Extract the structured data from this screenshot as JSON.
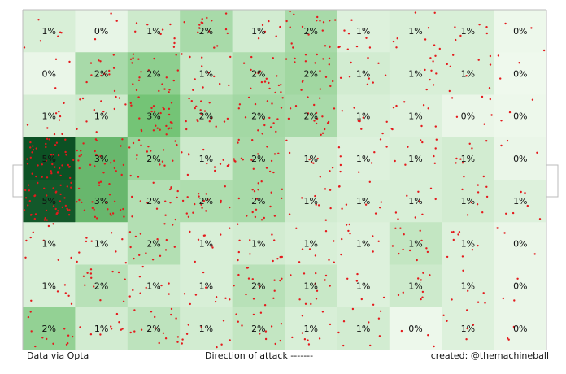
{
  "chart_data": {
    "type": "heatmap",
    "rows": 8,
    "cols": 10,
    "values": [
      [
        "1%",
        "0%",
        "1%",
        "2%",
        "1%",
        "2%",
        "1%",
        "1%",
        "1%",
        "0%"
      ],
      [
        "0%",
        "2%",
        "2%",
        "1%",
        "2%",
        "2%",
        "1%",
        "1%",
        "1%",
        "0%"
      ],
      [
        "1%",
        "1%",
        "3%",
        "2%",
        "2%",
        "2%",
        "1%",
        "1%",
        "0%",
        "0%"
      ],
      [
        "5%",
        "3%",
        "2%",
        "1%",
        "2%",
        "1%",
        "1%",
        "1%",
        "1%",
        "0%"
      ],
      [
        "5%",
        "3%",
        "2%",
        "2%",
        "2%",
        "1%",
        "1%",
        "1%",
        "1%",
        "1%"
      ],
      [
        "1%",
        "1%",
        "2%",
        "1%",
        "1%",
        "1%",
        "1%",
        "1%",
        "1%",
        "0%"
      ],
      [
        "1%",
        "2%",
        "1%",
        "1%",
        "2%",
        "1%",
        "1%",
        "1%",
        "1%",
        "0%"
      ],
      [
        "2%",
        "1%",
        "2%",
        "1%",
        "2%",
        "1%",
        "1%",
        "0%",
        "1%",
        "0%"
      ]
    ],
    "intensity": [
      [
        0.12,
        0.06,
        0.16,
        0.3,
        0.14,
        0.3,
        0.1,
        0.12,
        0.12,
        0.04
      ],
      [
        0.05,
        0.3,
        0.4,
        0.18,
        0.28,
        0.33,
        0.14,
        0.12,
        0.12,
        0.03
      ],
      [
        0.13,
        0.16,
        0.5,
        0.28,
        0.32,
        0.3,
        0.12,
        0.1,
        0.05,
        0.04
      ],
      [
        0.95,
        0.55,
        0.35,
        0.16,
        0.3,
        0.14,
        0.1,
        0.12,
        0.14,
        0.05
      ],
      [
        0.92,
        0.55,
        0.26,
        0.28,
        0.3,
        0.14,
        0.12,
        0.12,
        0.14,
        0.1
      ],
      [
        0.12,
        0.12,
        0.26,
        0.12,
        0.14,
        0.12,
        0.1,
        0.2,
        0.1,
        0.05
      ],
      [
        0.12,
        0.24,
        0.14,
        0.12,
        0.24,
        0.18,
        0.1,
        0.16,
        0.1,
        0.05
      ],
      [
        0.38,
        0.14,
        0.22,
        0.14,
        0.2,
        0.12,
        0.14,
        0.04,
        0.1,
        0.05
      ]
    ],
    "event_density": [
      [
        2,
        1,
        3,
        5,
        2,
        6,
        3,
        3,
        2,
        1
      ],
      [
        1,
        4,
        7,
        4,
        6,
        6,
        3,
        3,
        3,
        1
      ],
      [
        3,
        4,
        9,
        6,
        6,
        6,
        3,
        3,
        2,
        1
      ],
      [
        14,
        8,
        6,
        4,
        6,
        3,
        3,
        3,
        3,
        1
      ],
      [
        14,
        8,
        5,
        6,
        6,
        3,
        3,
        3,
        3,
        2
      ],
      [
        3,
        3,
        5,
        3,
        4,
        3,
        3,
        4,
        3,
        1
      ],
      [
        2,
        4,
        3,
        3,
        5,
        4,
        2,
        3,
        2,
        1
      ],
      [
        4,
        3,
        5,
        3,
        4,
        3,
        3,
        1,
        2,
        1
      ]
    ],
    "colors": {
      "scale_low": "#f7fcf5",
      "scale_mid": "#74c476",
      "scale_high": "#00441b",
      "events": "#e41a1c",
      "pitch_lines": "#bbbbbb"
    }
  },
  "footer": {
    "source": "Data via Opta",
    "direction": "Direction of attack -------",
    "credit": "created: @themachineball"
  }
}
